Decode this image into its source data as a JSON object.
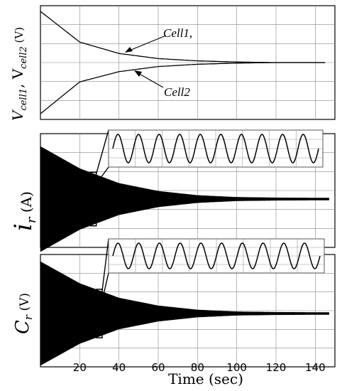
{
  "chart_data": {
    "type": "line",
    "xlabel": "Time (sec)",
    "x_ticks": [
      20,
      40,
      60,
      80,
      100,
      120,
      140
    ],
    "xlim": [
      0,
      150
    ],
    "grid": true,
    "panels": [
      {
        "ylabel": "V_cell1, V_cell2 (V)",
        "ylabel_main": "V",
        "ylabel_sub1": "cell1",
        "ylabel_mid": ", V",
        "ylabel_sub2": "cell2",
        "ylabel_unit": " (V)",
        "series": [
          {
            "name": "Cell1,",
            "x": [
              0,
              20,
              40,
              60,
              80,
              100,
              120,
              145
            ],
            "y": [
              0.95,
              0.68,
              0.58,
              0.535,
              0.515,
              0.505,
              0.5,
              0.5
            ]
          },
          {
            "name": "Cell2",
            "x": [
              0,
              20,
              40,
              60,
              80,
              100,
              120,
              145
            ],
            "y": [
              0.05,
              0.33,
              0.42,
              0.465,
              0.485,
              0.495,
              0.5,
              0.5
            ]
          }
        ],
        "annotations": [
          "Cell1,",
          "Cell2"
        ]
      },
      {
        "ylabel": "i_r (A)",
        "ylabel_main": "i",
        "ylabel_sub": "r",
        "ylabel_unit": " (A)",
        "envelope": {
          "x": [
            0,
            20,
            40,
            60,
            80,
            100,
            120,
            140,
            147
          ],
          "amplitude": [
            1.0,
            0.58,
            0.3,
            0.15,
            0.07,
            0.035,
            0.025,
            0.02,
            0.02
          ]
        },
        "inset_marker_x": 27,
        "inset_cycles": 10
      },
      {
        "ylabel": "C_r (V)",
        "ylabel_main": "C",
        "ylabel_sub": "r",
        "ylabel_unit": " (V)",
        "envelope": {
          "x": [
            0,
            20,
            40,
            60,
            80,
            100,
            120,
            140,
            147
          ],
          "amplitude": [
            1.0,
            0.58,
            0.3,
            0.15,
            0.07,
            0.035,
            0.025,
            0.02,
            0.02
          ]
        },
        "inset_marker_x": 30,
        "inset_cycles": 10
      }
    ]
  }
}
